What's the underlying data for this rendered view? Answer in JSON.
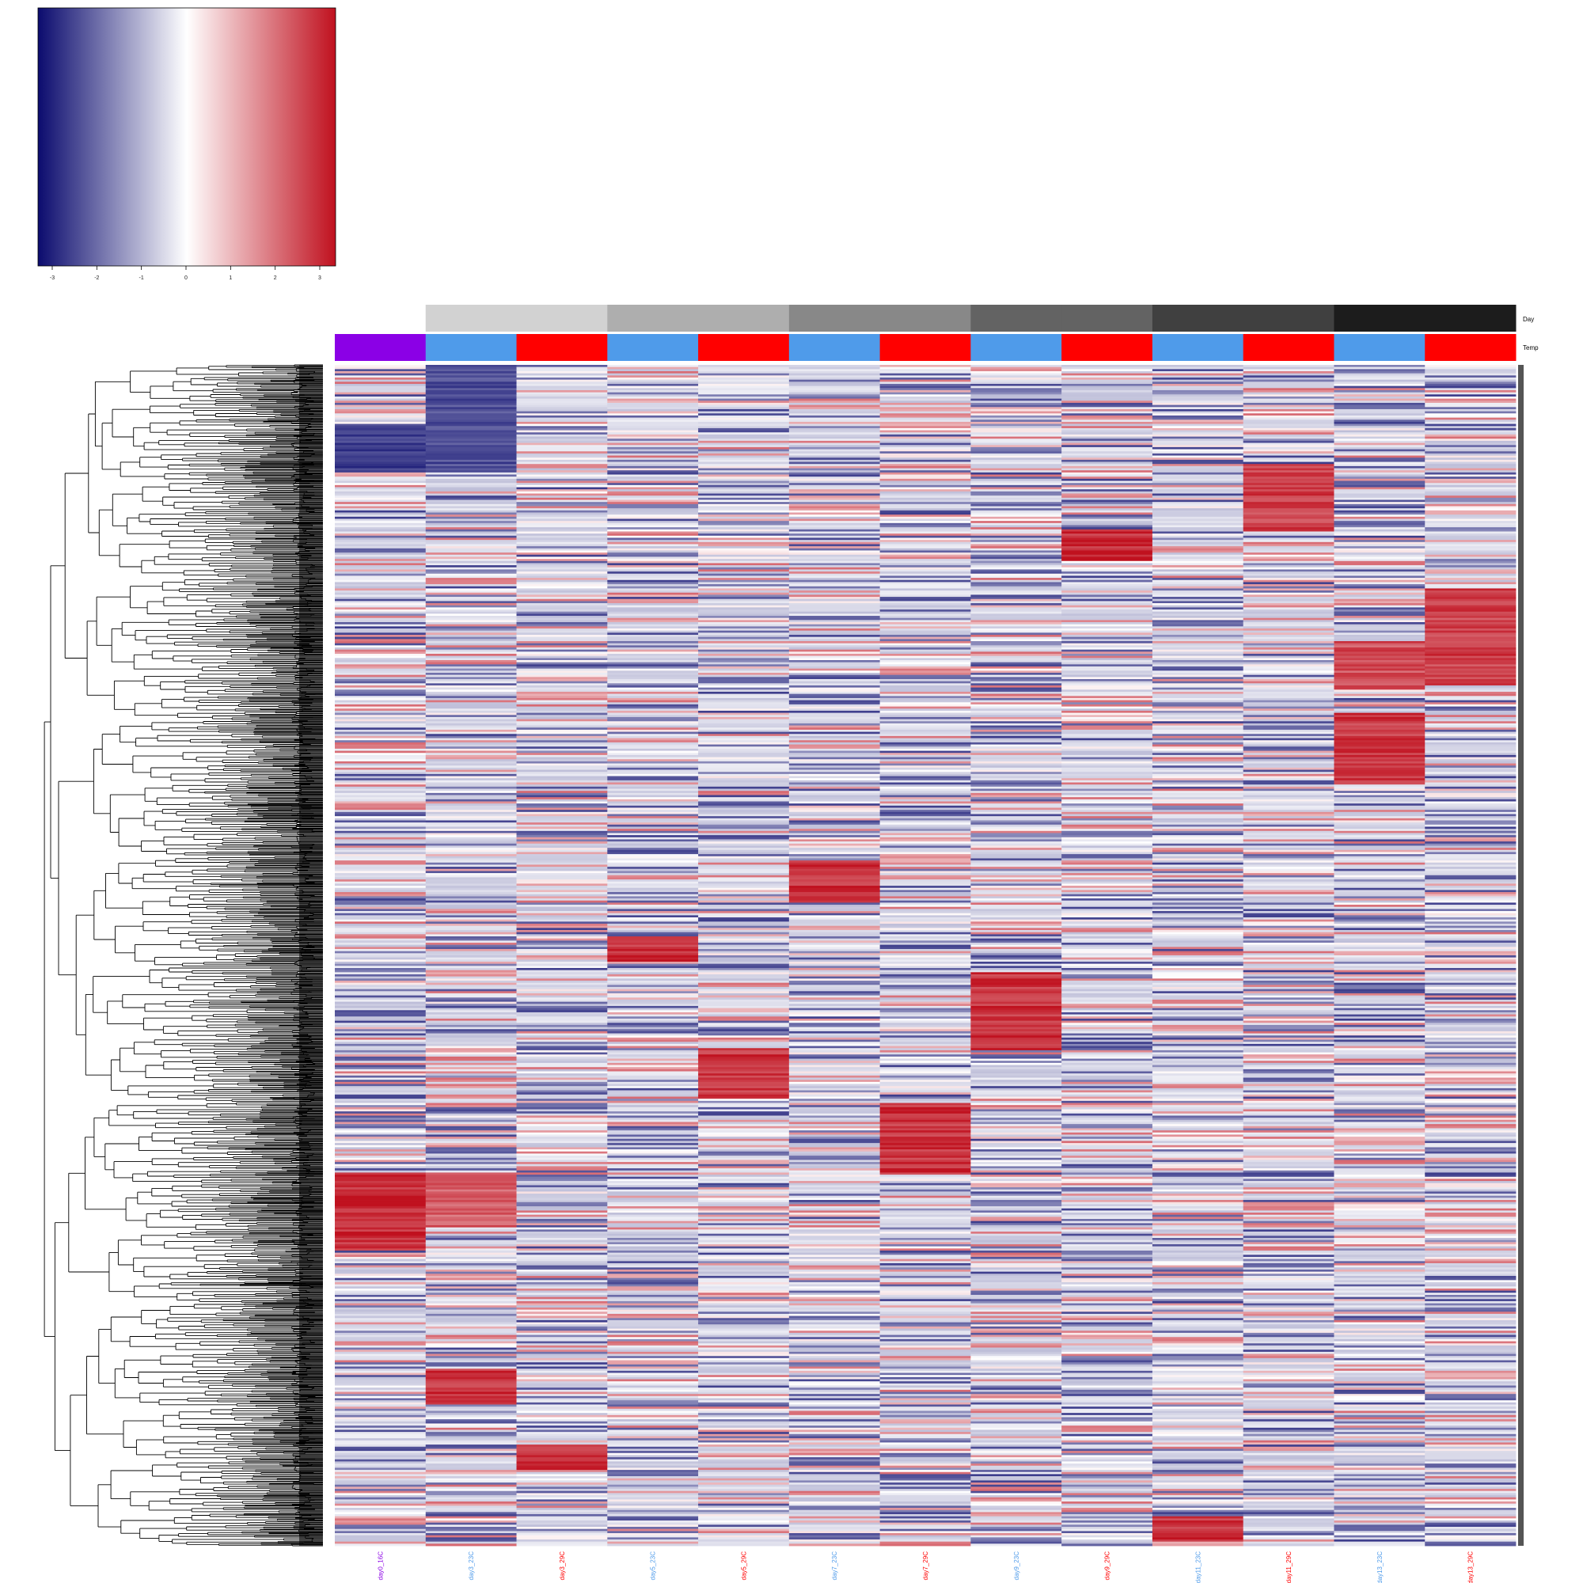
{
  "chart_data": {
    "type": "heatmap",
    "title": "",
    "xlabel": "",
    "ylabel": "",
    "color_scale": {
      "colors": [
        "#0b0b6e",
        "#ffffff",
        "#c0111f"
      ],
      "range": [
        -3,
        3
      ],
      "ticks": [
        "-3",
        "-2",
        "-1",
        "0",
        "1",
        "2",
        "3"
      ]
    },
    "annotation_names": {
      "day": "Day",
      "temp": "Temp"
    },
    "annotation_colors": {
      "temp": {
        "16C": "#8b00e6",
        "23C": "#4f9bea",
        "29C": "#ff0000"
      },
      "day": {
        "0": "#ffffff",
        "3": "#d2d2d2",
        "5": "#aeaeae",
        "7": "#888888",
        "9": "#636363",
        "11": "#404040",
        "13": "#1c1c1c"
      }
    },
    "columns": [
      {
        "label": "day0_16C",
        "day": "0",
        "temp": "16C"
      },
      {
        "label": "day3_23C",
        "day": "3",
        "temp": "23C"
      },
      {
        "label": "day3_29C",
        "day": "3",
        "temp": "29C"
      },
      {
        "label": "day5_23C",
        "day": "5",
        "temp": "23C"
      },
      {
        "label": "day5_29C",
        "day": "5",
        "temp": "29C"
      },
      {
        "label": "day7_23C",
        "day": "7",
        "temp": "23C"
      },
      {
        "label": "day7_29C",
        "day": "7",
        "temp": "29C"
      },
      {
        "label": "day9_23C",
        "day": "9",
        "temp": "23C"
      },
      {
        "label": "day9_29C",
        "day": "9",
        "temp": "29C"
      },
      {
        "label": "day11_23C",
        "day": "11",
        "temp": "23C"
      },
      {
        "label": "day11_29C",
        "day": "11",
        "temp": "29C"
      },
      {
        "label": "day13_23C",
        "day": "13",
        "temp": "23C"
      },
      {
        "label": "day13_29C",
        "day": "13",
        "temp": "29C"
      }
    ],
    "row_dendrogram": true,
    "highlighted_blocks": [
      {
        "column": "day11_29C",
        "rows": [
          0.085,
          0.14
        ],
        "value": 2.6
      },
      {
        "column": "day9_29C",
        "rows": [
          0.14,
          0.165
        ],
        "value": 2.9
      },
      {
        "column": "day13_29C",
        "rows": [
          0.19,
          0.27
        ],
        "value": 2.6
      },
      {
        "column": "day13_23C",
        "rows": [
          0.235,
          0.275
        ],
        "value": 2.4
      },
      {
        "column": "day13_23C",
        "rows": [
          0.295,
          0.355
        ],
        "value": 2.7
      },
      {
        "column": "day7_23C",
        "rows": [
          0.42,
          0.455
        ],
        "value": 2.8
      },
      {
        "column": "day5_23C",
        "rows": [
          0.485,
          0.505
        ],
        "value": 2.8
      },
      {
        "column": "day9_23C",
        "rows": [
          0.515,
          0.58
        ],
        "value": 2.8
      },
      {
        "column": "day5_29C",
        "rows": [
          0.58,
          0.62
        ],
        "value": 2.8
      },
      {
        "column": "day7_29C",
        "rows": [
          0.625,
          0.685
        ],
        "value": 2.8
      },
      {
        "column": "day0_16C",
        "rows": [
          0.685,
          0.75
        ],
        "value": 2.9
      },
      {
        "column": "day3_23C",
        "rows": [
          0.685,
          0.73
        ],
        "value": 2.2
      },
      {
        "column": "day3_23C",
        "rows": [
          0.85,
          0.88
        ],
        "value": 2.8
      },
      {
        "column": "day3_29C",
        "rows": [
          0.915,
          0.935
        ],
        "value": 2.8
      },
      {
        "column": "day11_23C",
        "rows": [
          0.975,
          0.995
        ],
        "value": 2.8
      },
      {
        "column": "day0_16C",
        "rows": [
          0.05,
          0.09
        ],
        "value": -2.6
      },
      {
        "column": "day3_23C",
        "rows": [
          0.0,
          0.09
        ],
        "value": -2.4
      }
    ]
  }
}
